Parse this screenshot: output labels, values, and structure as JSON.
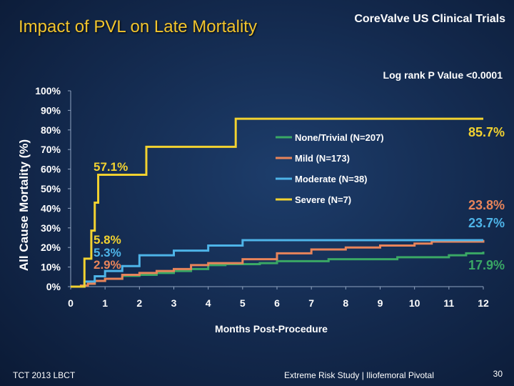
{
  "slide": {
    "title": "Impact of PVL on Late Mortality",
    "brand": "CoreValve US Clinical Trials",
    "footer_left": "TCT 2013 LBCT",
    "footer_center": "Extreme Risk Study | Iliofemoral Pivotal",
    "page_number": "30"
  },
  "chart_data": {
    "type": "line",
    "title": "",
    "annotation": "Log rank P Value <0.0001",
    "xlabel": "Months Post-Procedure",
    "ylabel": "All Cause Mortality (%)",
    "xlim": [
      0,
      12
    ],
    "ylim": [
      0,
      100
    ],
    "x_ticks": [
      "0",
      "1",
      "2",
      "3",
      "4",
      "5",
      "6",
      "7",
      "8",
      "9",
      "10",
      "11",
      "12"
    ],
    "y_ticks": [
      "0%",
      "10%",
      "20%",
      "30%",
      "40%",
      "50%",
      "60%",
      "70%",
      "80%",
      "90%",
      "100%"
    ],
    "grid": false,
    "legend_position": "center-right",
    "series": [
      {
        "name": "None/Trivial (N=207)",
        "color": "#3aa865",
        "step": true,
        "points": [
          [
            0,
            0
          ],
          [
            0.3,
            0.5
          ],
          [
            0.5,
            1.5
          ],
          [
            0.7,
            2.9
          ],
          [
            1,
            4
          ],
          [
            1.5,
            5.5
          ],
          [
            2,
            6
          ],
          [
            2.5,
            7
          ],
          [
            3,
            8
          ],
          [
            3.5,
            9
          ],
          [
            4,
            11
          ],
          [
            4.5,
            11.5
          ],
          [
            5.5,
            12
          ],
          [
            6,
            13
          ],
          [
            7.5,
            14
          ],
          [
            9.5,
            15
          ],
          [
            11,
            16
          ],
          [
            11.5,
            17
          ],
          [
            12,
            17.9
          ]
        ]
      },
      {
        "name": "Mild (N=173)",
        "color": "#e8845a",
        "step": true,
        "points": [
          [
            0,
            0
          ],
          [
            0.3,
            0.5
          ],
          [
            0.5,
            1.5
          ],
          [
            0.7,
            2.9
          ],
          [
            1,
            4
          ],
          [
            1.5,
            6
          ],
          [
            2,
            7
          ],
          [
            2.5,
            8
          ],
          [
            3,
            9
          ],
          [
            3.5,
            11
          ],
          [
            4,
            12
          ],
          [
            5,
            14
          ],
          [
            6,
            17
          ],
          [
            7,
            19
          ],
          [
            8,
            20
          ],
          [
            9,
            21
          ],
          [
            10,
            22
          ],
          [
            10.5,
            23
          ],
          [
            12,
            23.8
          ]
        ]
      },
      {
        "name": "Moderate (N=38)",
        "color": "#4eb4e8",
        "step": true,
        "points": [
          [
            0,
            0
          ],
          [
            0.4,
            2.6
          ],
          [
            0.7,
            5.3
          ],
          [
            1,
            8
          ],
          [
            1.5,
            10.5
          ],
          [
            2,
            16
          ],
          [
            3,
            18.4
          ],
          [
            4,
            21
          ],
          [
            5,
            23.7
          ],
          [
            12,
            23.7
          ]
        ]
      },
      {
        "name": "Severe (N=7)",
        "color": "#f2d230",
        "step": true,
        "points": [
          [
            0,
            0
          ],
          [
            0.3,
            0
          ],
          [
            0.4,
            14.3
          ],
          [
            0.6,
            28.6
          ],
          [
            0.7,
            42.9
          ],
          [
            0.8,
            57.1
          ],
          [
            2.2,
            71.4
          ],
          [
            4.8,
            85.7
          ],
          [
            12,
            85.7
          ]
        ]
      }
    ],
    "value_labels": [
      {
        "text": "57.1%",
        "color": "#f2d230"
      },
      {
        "text": "5.8%",
        "color": "#f2d230"
      },
      {
        "text": "5.3%",
        "color": "#4eb4e8"
      },
      {
        "text": "2.9%",
        "color": "#e8845a"
      },
      {
        "text": "85.7%",
        "color": "#f2d230"
      },
      {
        "text": "23.8%",
        "color": "#e8845a"
      },
      {
        "text": "23.7%",
        "color": "#4eb4e8"
      },
      {
        "text": "17.9%",
        "color": "#3aa865"
      }
    ]
  }
}
